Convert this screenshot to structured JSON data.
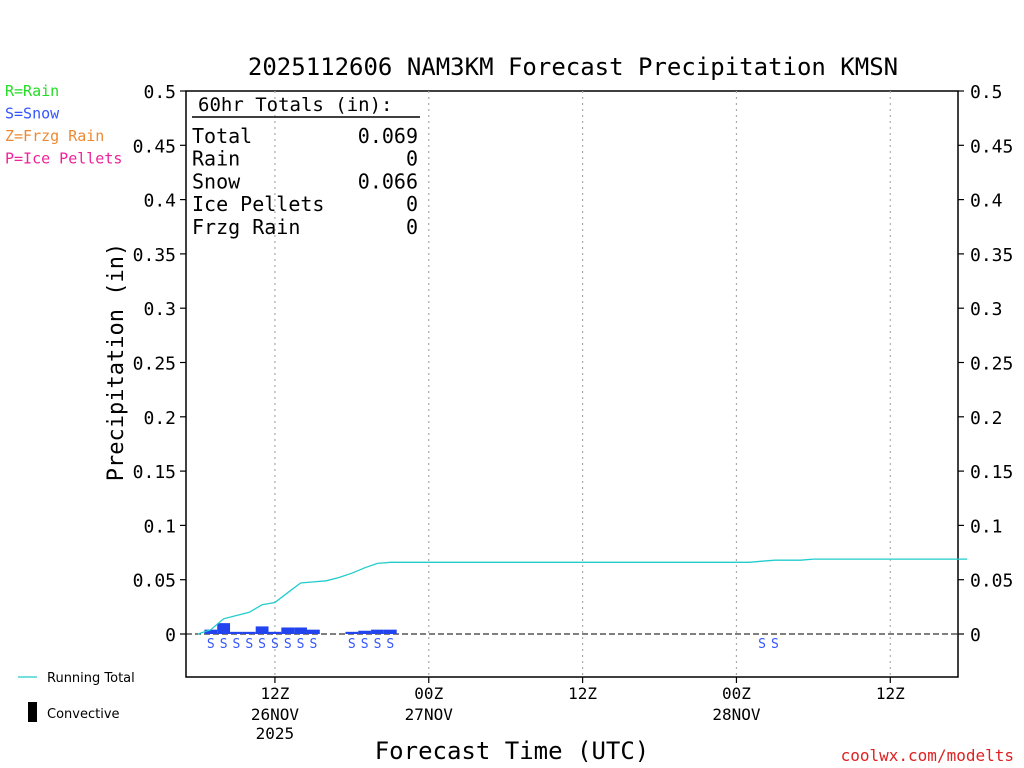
{
  "chart_data": {
    "type": "bar",
    "title": "2025112606 NAM3KM Forecast Precipitation KMSN",
    "xlabel": "Forecast Time (UTC)",
    "ylabel": "Precipitation (in)",
    "ylim": [
      0,
      0.5
    ],
    "xlim_hours": [
      0,
      60
    ],
    "x_start_hour_offset": 6,
    "yticks": [
      "0",
      "0.05",
      "0.1",
      "0.15",
      "0.2",
      "0.25",
      "0.3",
      "0.35",
      "0.4",
      "0.45",
      "0.5"
    ],
    "xticks": [
      {
        "hour": 6,
        "label": "12Z",
        "date": "26NOV",
        "year": "2025"
      },
      {
        "hour": 18,
        "label": "00Z",
        "date": "27NOV",
        "year": ""
      },
      {
        "hour": 30,
        "label": "12Z",
        "date": "",
        "year": ""
      },
      {
        "hour": 42,
        "label": "00Z",
        "date": "28NOV",
        "year": ""
      },
      {
        "hour": 54,
        "label": "12Z",
        "date": "",
        "year": ""
      }
    ],
    "gridlines": "vertical dotted",
    "legend_precip_types": [
      {
        "label": "R=Rain",
        "color": "#22dd22"
      },
      {
        "label": "S=Snow",
        "color": "#3355ff"
      },
      {
        "label": "Z=Frzg Rain",
        "color": "#ee8833"
      },
      {
        "label": "P=Ice Pellets",
        "color": "#ee2299"
      }
    ],
    "legend_series": [
      {
        "label": "Running Total",
        "color": "#22cccc"
      },
      {
        "label": "Convective",
        "color": "#000000"
      }
    ],
    "totals": {
      "header": "60hr Totals (in):",
      "rows": [
        {
          "label": "Total",
          "value": "0.069"
        },
        {
          "label": "Rain",
          "value": "0"
        },
        {
          "label": "Snow",
          "value": "0.066"
        },
        {
          "label": "Ice Pellets",
          "value": "0"
        },
        {
          "label": "Frzg Rain",
          "value": "0"
        }
      ]
    },
    "hourly_bars": {
      "name": "Snow",
      "color": "#2244ee",
      "hours": [
        1,
        2,
        3,
        4,
        5,
        6,
        7,
        8,
        9,
        10,
        12,
        13,
        14,
        15
      ],
      "values": [
        0.004,
        0.01,
        0.002,
        0.002,
        0.007,
        0.002,
        0.006,
        0.006,
        0.004,
        0,
        0.002,
        0.003,
        0.004,
        0.004
      ]
    },
    "running_total": {
      "name": "Running Total",
      "color": "#22cccc",
      "hours": [
        0,
        1,
        2,
        3,
        4,
        5,
        5.5,
        6,
        7,
        8,
        9,
        10,
        11,
        12,
        13,
        14,
        15,
        16,
        17,
        18,
        30,
        42,
        43,
        44,
        45,
        46,
        47,
        48,
        60
      ],
      "values": [
        0,
        0.004,
        0.014,
        0.017,
        0.02,
        0.027,
        0.028,
        0.029,
        0.038,
        0.047,
        0.048,
        0.049,
        0.052,
        0.056,
        0.061,
        0.065,
        0.066,
        0.066,
        0.066,
        0.066,
        0.066,
        0.066,
        0.066,
        0.067,
        0.068,
        0.068,
        0.068,
        0.069,
        0.069
      ]
    },
    "precip_type_markers": {
      "symbol": "S",
      "color": "#3355ff",
      "hours": [
        1,
        2,
        3,
        4,
        5,
        6,
        7,
        8,
        9,
        12,
        13,
        14,
        15,
        44,
        45
      ]
    }
  },
  "footer": {
    "credit": "coolwx.com/modelts",
    "credit_color": "#dd2222"
  }
}
